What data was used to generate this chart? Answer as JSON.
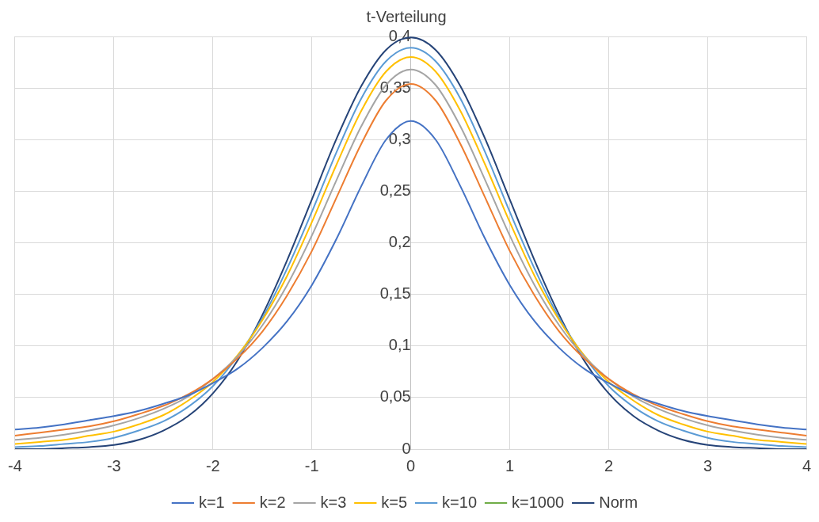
{
  "chart_data": {
    "type": "line",
    "title": "t-Verteilung",
    "x": [
      -4,
      -3.75,
      -3.5,
      -3.25,
      -3,
      -2.75,
      -2.5,
      -2.25,
      -2,
      -1.75,
      -1.5,
      -1.25,
      -1,
      -0.75,
      -0.5,
      -0.25,
      0,
      0.25,
      0.5,
      0.75,
      1,
      1.25,
      1.5,
      1.75,
      2,
      2.25,
      2.5,
      2.75,
      3,
      3.25,
      3.5,
      3.75,
      4
    ],
    "series": [
      {
        "name": "k=1",
        "color": "#4472c4",
        "values": [
          0.019,
          0.021,
          0.024,
          0.028,
          0.032,
          0.037,
          0.044,
          0.052,
          0.064,
          0.078,
          0.098,
          0.124,
          0.159,
          0.204,
          0.255,
          0.3,
          0.318,
          0.3,
          0.255,
          0.204,
          0.159,
          0.124,
          0.098,
          0.078,
          0.064,
          0.052,
          0.044,
          0.037,
          0.032,
          0.028,
          0.024,
          0.021,
          0.019
        ]
      },
      {
        "name": "k=2",
        "color": "#ed7d31",
        "values": [
          0.013,
          0.016,
          0.019,
          0.022,
          0.027,
          0.034,
          0.042,
          0.053,
          0.068,
          0.088,
          0.114,
          0.149,
          0.192,
          0.244,
          0.296,
          0.338,
          0.354,
          0.338,
          0.296,
          0.244,
          0.192,
          0.149,
          0.114,
          0.088,
          0.068,
          0.053,
          0.042,
          0.034,
          0.027,
          0.022,
          0.019,
          0.016,
          0.013
        ]
      },
      {
        "name": "k=3",
        "color": "#a5a5a5",
        "values": [
          0.009,
          0.011,
          0.014,
          0.018,
          0.023,
          0.03,
          0.039,
          0.051,
          0.068,
          0.09,
          0.12,
          0.159,
          0.207,
          0.261,
          0.313,
          0.353,
          0.368,
          0.353,
          0.313,
          0.261,
          0.207,
          0.159,
          0.12,
          0.09,
          0.068,
          0.051,
          0.039,
          0.03,
          0.023,
          0.018,
          0.014,
          0.011,
          0.009
        ]
      },
      {
        "name": "k=5",
        "color": "#ffc000",
        "values": [
          0.005,
          0.007,
          0.009,
          0.013,
          0.017,
          0.024,
          0.033,
          0.047,
          0.065,
          0.091,
          0.125,
          0.168,
          0.22,
          0.276,
          0.328,
          0.366,
          0.38,
          0.366,
          0.328,
          0.276,
          0.22,
          0.168,
          0.125,
          0.091,
          0.065,
          0.047,
          0.033,
          0.024,
          0.017,
          0.013,
          0.009,
          0.007,
          0.005
        ]
      },
      {
        "name": "k=10",
        "color": "#5b9bd5",
        "values": [
          0.002,
          0.003,
          0.005,
          0.007,
          0.011,
          0.018,
          0.027,
          0.041,
          0.061,
          0.09,
          0.127,
          0.175,
          0.23,
          0.288,
          0.34,
          0.376,
          0.389,
          0.376,
          0.34,
          0.288,
          0.23,
          0.175,
          0.127,
          0.09,
          0.061,
          0.041,
          0.027,
          0.018,
          0.011,
          0.007,
          0.005,
          0.003,
          0.002
        ]
      },
      {
        "name": "k=1000",
        "color": "#70ad47",
        "values": [
          null,
          null,
          null,
          null,
          null,
          null,
          null,
          null,
          null,
          null,
          null,
          null,
          null,
          null,
          null,
          null,
          null,
          null,
          null,
          null,
          null,
          null,
          null,
          null,
          null,
          null,
          null,
          null,
          null,
          null,
          null,
          null,
          null
        ]
      },
      {
        "name": "Norm",
        "color": "#264478",
        "values": [
          0,
          0,
          0.001,
          0.002,
          0.004,
          0.009,
          0.018,
          0.032,
          0.054,
          0.086,
          0.13,
          0.183,
          0.242,
          0.301,
          0.352,
          0.387,
          0.399,
          0.387,
          0.352,
          0.301,
          0.242,
          0.183,
          0.13,
          0.086,
          0.054,
          0.032,
          0.018,
          0.009,
          0.004,
          0.002,
          0.001,
          0,
          0
        ]
      }
    ],
    "xlim": [
      -4,
      4
    ],
    "xticks": [
      -4,
      -3,
      -2,
      -1,
      0,
      1,
      2,
      3,
      4
    ],
    "ylim": [
      0,
      0.4
    ],
    "yticks": [
      0,
      {
        "value": 0.05,
        "label": "0,05"
      },
      {
        "value": 0.1,
        "label": "0,1"
      },
      {
        "value": 0.15,
        "label": "0,15"
      },
      {
        "value": 0.2,
        "label": "0,2"
      },
      {
        "value": 0.25,
        "label": "0,25"
      },
      {
        "value": 0.3,
        "label": "0,3"
      },
      {
        "value": 0.35,
        "label": "0,35"
      },
      {
        "value": 0.4,
        "label": "0,4"
      }
    ],
    "grid": true,
    "legend": "bottom",
    "marker": "none",
    "line_style": "solid"
  }
}
